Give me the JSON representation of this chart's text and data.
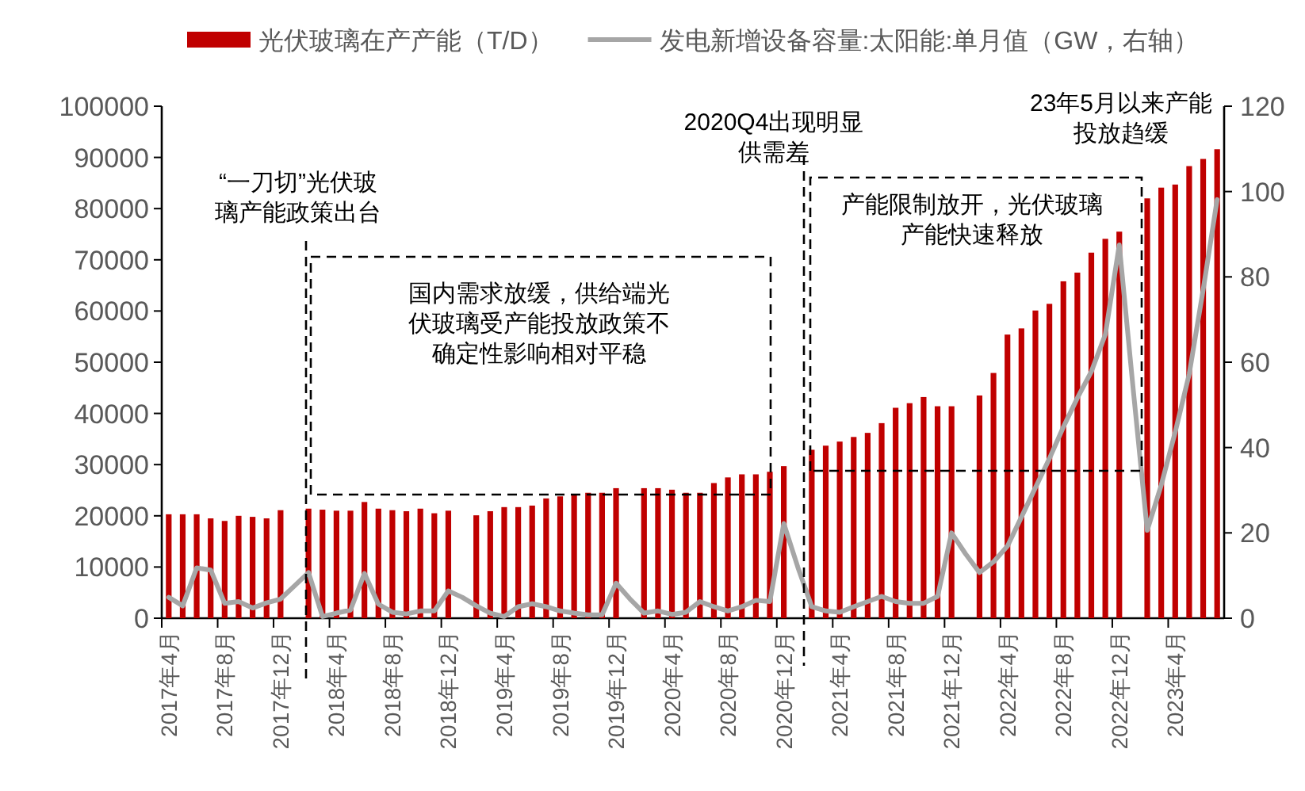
{
  "chart_data": {
    "type": "bar",
    "categories": [
      "2017年4月",
      null,
      null,
      null,
      "2017年8月",
      null,
      null,
      null,
      "2017年12月",
      null,
      null,
      null,
      "2018年4月",
      null,
      null,
      null,
      "2018年8月",
      null,
      null,
      null,
      "2018年12月",
      null,
      null,
      null,
      "2019年4月",
      null,
      null,
      null,
      "2019年8月",
      null,
      null,
      null,
      "2019年12月",
      null,
      null,
      null,
      "2020年4月",
      null,
      null,
      null,
      "2020年8月",
      null,
      null,
      null,
      "2020年12月",
      null,
      null,
      null,
      "2021年4月",
      null,
      null,
      null,
      "2021年8月",
      null,
      null,
      null,
      "2021年12月",
      null,
      null,
      null,
      "2022年4月",
      null,
      null,
      null,
      "2022年8月",
      null,
      null,
      null,
      "2022年12月",
      null,
      null,
      null,
      "2023年4月",
      null,
      null,
      null
    ],
    "series": [
      {
        "name": "光伏玻璃在产产能（T/D）",
        "color": "#c00000",
        "values": [
          20300,
          20300,
          20300,
          19500,
          19000,
          20000,
          19800,
          19500,
          21100,
          null,
          21400,
          21200,
          21000,
          21000,
          22700,
          21400,
          21100,
          20900,
          21400,
          20500,
          21000,
          null,
          20100,
          20900,
          21700,
          21700,
          22000,
          23400,
          23800,
          24300,
          24500,
          24500,
          25400,
          null,
          25400,
          25400,
          25100,
          24500,
          24500,
          26400,
          27500,
          28100,
          28100,
          28600,
          29700,
          null,
          32900,
          33700,
          34500,
          35400,
          36200,
          38100,
          41100,
          42000,
          43200,
          41400,
          41400,
          null,
          43500,
          47900,
          55400,
          56600,
          60100,
          61400,
          65800,
          67500,
          71400,
          74100,
          75500,
          null,
          82000,
          84100,
          84700,
          88300,
          89700,
          91600
        ]
      },
      {
        "name": "发电新增设备容量:太阳能:单月值（GW，右轴）",
        "type": "line",
        "axis": "y2",
        "color": "#a6a6a6",
        "values": [
          4.9,
          2.9,
          11.8,
          11.3,
          3.5,
          3.9,
          2.4,
          3.6,
          4.5,
          7.6,
          10.7,
          0.4,
          1.2,
          1.9,
          10.5,
          3.3,
          1.4,
          1.0,
          1.7,
          1.7,
          6.4,
          4.9,
          2.9,
          1.2,
          0.4,
          2.7,
          3.4,
          2.7,
          1.7,
          1.2,
          0.8,
          0.8,
          8.2,
          4.5,
          1.2,
          1.7,
          0.9,
          1.4,
          3.9,
          2.7,
          1.7,
          2.7,
          4.2,
          3.9,
          22.2,
          12.0,
          2.7,
          1.7,
          1.4,
          2.7,
          3.9,
          5.1,
          3.9,
          3.5,
          3.5,
          5.1,
          20.0,
          15.1,
          10.7,
          13.2,
          16.9,
          23.7,
          30.6,
          37.4,
          44.8,
          51.6,
          57.8,
          66.5,
          87.5,
          53.5,
          20.6,
          31.2,
          43.6,
          57.2,
          77.0,
          98.1
        ]
      }
    ],
    "ylim": [
      0,
      100000
    ],
    "yticks": [
      0,
      10000,
      20000,
      30000,
      40000,
      50000,
      60000,
      70000,
      80000,
      90000,
      100000
    ],
    "y2lim": [
      0,
      120
    ],
    "y2ticks": [
      0,
      20,
      40,
      60,
      80,
      100,
      120
    ],
    "legend": "top",
    "annotations": [
      "“一刀切”光伏玻璃产能政策出台",
      "国内需求放缓，供给端光伏玻璃受产能投放政策不确定性影响相对平稳",
      "2020Q4出现明显供需差",
      "产能限制放开，光伏玻璃产能快速释放",
      "23年5月以来产能投放趋缓"
    ]
  }
}
